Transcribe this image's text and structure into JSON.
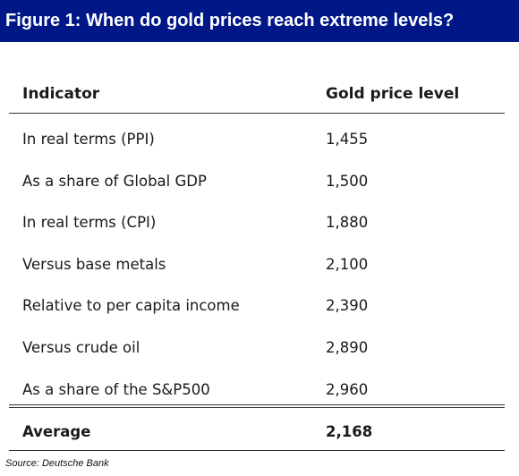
{
  "figure": {
    "title": "Figure 1: When do gold prices reach extreme levels?"
  },
  "table": {
    "columns": [
      "Indicator",
      "Gold price level"
    ],
    "rows": [
      {
        "indicator": "In real terms (PPI)",
        "level": "1,455"
      },
      {
        "indicator": "As a share of Global GDP",
        "level": "1,500"
      },
      {
        "indicator": "In real terms (CPI)",
        "level": "1,880"
      },
      {
        "indicator": "Versus base metals",
        "level": "2,100"
      },
      {
        "indicator": "Relative to per capita income",
        "level": "2,390"
      },
      {
        "indicator": "Versus crude oil",
        "level": "2,890"
      },
      {
        "indicator": "As a share of the S&P500",
        "level": "2,960"
      }
    ],
    "average": {
      "indicator": "Average",
      "level": "2,168"
    }
  },
  "source": "Source: Deutsche Bank",
  "colors": {
    "title_background": "#001787",
    "title_text": "#ffffff"
  }
}
